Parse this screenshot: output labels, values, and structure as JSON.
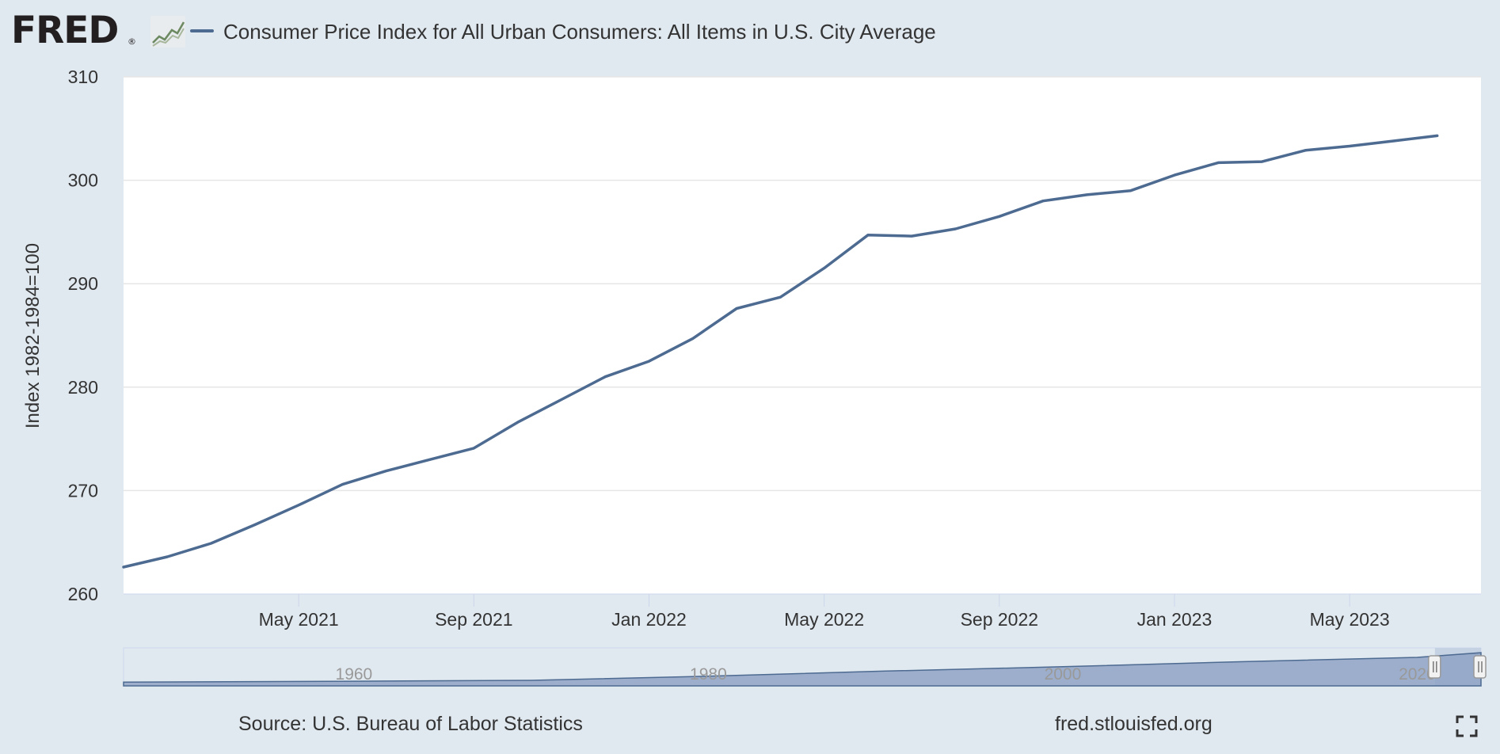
{
  "header": {
    "logo_text": "FRED",
    "logo_mark": "®",
    "logo_icon": "line-graph-icon"
  },
  "colors": {
    "background": "#e1e9f0",
    "plot_background": "#ffffff",
    "series_line": "#4d6a91",
    "navigator_fill": "#8fa3c4",
    "grid": "#e6e6e6"
  },
  "chart_data": {
    "type": "line",
    "title": "",
    "xlabel": "",
    "ylabel": "Index 1982-1984=100",
    "ylim": [
      260,
      310
    ],
    "yticks": [
      260,
      270,
      280,
      290,
      300,
      310
    ],
    "xlim": [
      "2021-01",
      "2023-08"
    ],
    "xticks": [
      {
        "date": "2021-05",
        "label": "May 2021"
      },
      {
        "date": "2021-09",
        "label": "Sep 2021"
      },
      {
        "date": "2022-01",
        "label": "Jan 2022"
      },
      {
        "date": "2022-05",
        "label": "May 2022"
      },
      {
        "date": "2022-09",
        "label": "Sep 2022"
      },
      {
        "date": "2023-01",
        "label": "Jan 2023"
      },
      {
        "date": "2023-05",
        "label": "May 2023"
      }
    ],
    "grid": true,
    "legend_position": "top-left",
    "series": [
      {
        "name": "Consumer Price Index for All Urban Consumers: All Items in U.S. City Average",
        "x": [
          "2021-01",
          "2021-02",
          "2021-03",
          "2021-04",
          "2021-05",
          "2021-06",
          "2021-07",
          "2021-08",
          "2021-09",
          "2021-10",
          "2021-11",
          "2021-12",
          "2022-01",
          "2022-02",
          "2022-03",
          "2022-04",
          "2022-05",
          "2022-06",
          "2022-07",
          "2022-08",
          "2022-09",
          "2022-10",
          "2022-11",
          "2022-12",
          "2023-01",
          "2023-02",
          "2023-03",
          "2023-04",
          "2023-05",
          "2023-06",
          "2023-07"
        ],
        "values": [
          262.6,
          263.6,
          264.9,
          266.7,
          268.6,
          270.6,
          271.9,
          273.0,
          274.1,
          276.6,
          278.8,
          281.0,
          282.5,
          284.7,
          287.6,
          288.7,
          291.5,
          294.7,
          294.6,
          295.3,
          296.5,
          298.0,
          298.6,
          299.0,
          300.5,
          301.7,
          301.8,
          302.9,
          303.3,
          303.8,
          304.3
        ]
      }
    ],
    "navigator": {
      "labels": [
        "1960",
        "1980",
        "2000",
        "2020"
      ],
      "years": [
        1947,
        1960,
        1970,
        1980,
        1990,
        2000,
        2010,
        2020,
        2023.6
      ],
      "values": [
        21.5,
        29.4,
        37.8,
        78.0,
        127.4,
        168.8,
        217.5,
        258.8,
        304.3
      ],
      "selection": [
        "2021-01",
        "2023-07"
      ]
    }
  },
  "footer": {
    "source": "Source: U.S. Bureau of Labor Statistics",
    "site": "fred.stlouisfed.org",
    "fullscreen_icon": "fullscreen-icon"
  }
}
